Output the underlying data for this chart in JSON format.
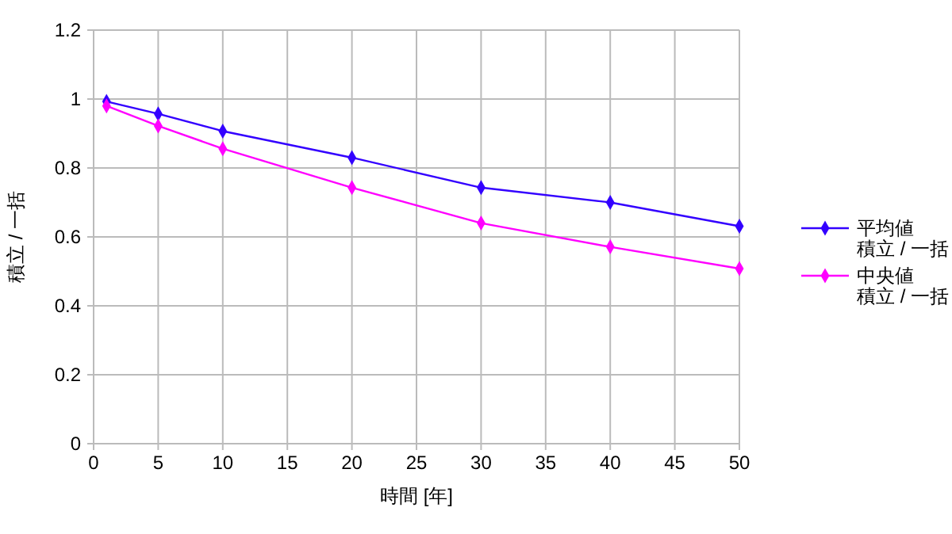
{
  "chart_data": {
    "type": "line",
    "xlabel": "時間 [年]",
    "ylabel": "積立 / 一括",
    "x": [
      1,
      5,
      10,
      20,
      30,
      40,
      50
    ],
    "series": [
      {
        "name": "平均値積立 / 一括",
        "color": "#3300ff",
        "values": [
          0.993,
          0.957,
          0.907,
          0.83,
          0.743,
          0.7,
          0.631
        ]
      },
      {
        "name": "中央値積立 / 一括",
        "color": "#ff00ff",
        "values": [
          0.98,
          0.922,
          0.856,
          0.743,
          0.64,
          0.571,
          0.508
        ]
      }
    ],
    "xlim": [
      0,
      50
    ],
    "xticks": [
      0,
      5,
      10,
      15,
      20,
      25,
      30,
      35,
      40,
      45,
      50
    ],
    "ylim": [
      0,
      1.2
    ],
    "yticks": [
      0,
      0.2,
      0.4,
      0.6,
      0.8,
      1,
      1.2
    ],
    "grid": true,
    "legend": "right",
    "marker": "diamond",
    "line_style": "solid"
  }
}
